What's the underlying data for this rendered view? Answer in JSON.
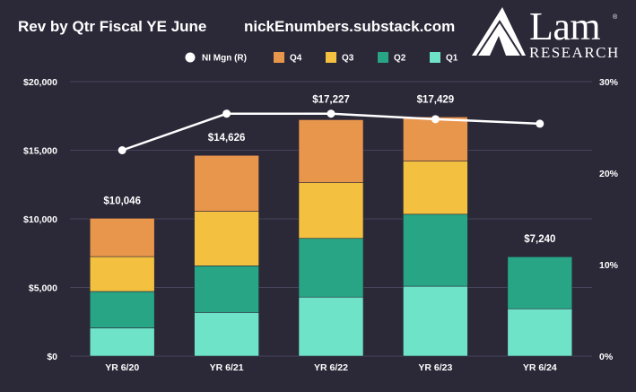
{
  "header": {
    "title": "Rev by Qtr Fiscal YE June",
    "source": "nickEnumbers.substack.com"
  },
  "logo": {
    "name": "Lam",
    "sub": "RESEARCH",
    "mark": "®"
  },
  "colors": {
    "background": "#2b2838",
    "Q1": "#6ee3c8",
    "Q2": "#27a585",
    "Q3": "#f3c13f",
    "Q4": "#e9964d",
    "line": "#ffffff",
    "grid": "#47435a"
  },
  "chart_data": {
    "type": "bar",
    "stacked": true,
    "categories": [
      "YR 6/20",
      "YR 6/21",
      "YR 6/22",
      "YR 6/23",
      "YR 6/24"
    ],
    "series": [
      {
        "name": "Q1",
        "values": [
          2060,
          3180,
          4300,
          5090,
          3450
        ]
      },
      {
        "name": "Q2",
        "values": [
          2650,
          3400,
          4280,
          5250,
          3790
        ]
      },
      {
        "name": "Q3",
        "values": [
          2540,
          3970,
          4060,
          3870,
          0
        ]
      },
      {
        "name": "Q4",
        "values": [
          2796,
          4076,
          4587,
          3219,
          0
        ]
      }
    ],
    "totals": [
      10046,
      14626,
      17227,
      17429,
      7240
    ],
    "total_labels": [
      "$10,046",
      "$14,626",
      "$17,227",
      "$17,429",
      "$7,240"
    ],
    "line_series": {
      "name": "NI Mgn (R)",
      "axis": "right",
      "values": [
        22.5,
        26.5,
        26.5,
        25.9,
        25.4
      ]
    },
    "legend": [
      "NI Mgn (R)",
      "Q4",
      "Q3",
      "Q2",
      "Q1"
    ],
    "legend_position": "top",
    "ylim": [
      0,
      20000
    ],
    "yticks": [
      "$0",
      "$5,000",
      "$10,000",
      "$15,000",
      "$20,000"
    ],
    "y2lim": [
      0,
      30
    ],
    "y2ticks": [
      "0%",
      "10%",
      "20%",
      "30%"
    ],
    "grid": true
  }
}
